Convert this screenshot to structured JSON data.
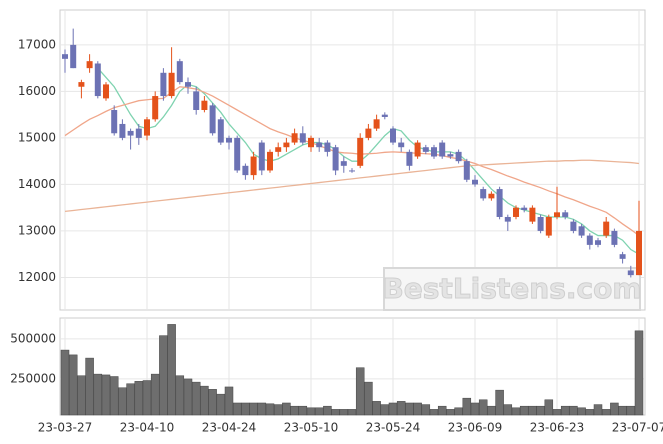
{
  "chart_data": [
    {
      "type": "candlestick",
      "watermark": "BestListens.com",
      "categories": [
        "23-03-27",
        null,
        null,
        null,
        null,
        null,
        null,
        null,
        null,
        null,
        "23-04-10",
        null,
        null,
        null,
        null,
        null,
        null,
        null,
        null,
        null,
        "23-04-24",
        null,
        null,
        null,
        null,
        null,
        null,
        null,
        null,
        null,
        "23-05-10",
        null,
        null,
        null,
        null,
        null,
        null,
        null,
        null,
        null,
        "23-05-24",
        null,
        null,
        null,
        null,
        null,
        null,
        null,
        null,
        null,
        "23-06-09",
        null,
        null,
        null,
        null,
        null,
        null,
        null,
        null,
        null,
        "23-06-23",
        null,
        null,
        null,
        null,
        null,
        null,
        null,
        null,
        null,
        "23-07-07"
      ],
      "open": [
        16800,
        17000,
        16100,
        16500,
        16600,
        15850,
        15600,
        15300,
        15150,
        15200,
        15050,
        15400,
        16400,
        15900,
        16650,
        16200,
        16000,
        15600,
        15700,
        15400,
        15000,
        15000,
        14400,
        14200,
        14900,
        14300,
        14700,
        14800,
        14900,
        15100,
        14800,
        14900,
        14900,
        14800,
        14500,
        14300,
        14400,
        15000,
        15200,
        15500,
        15200,
        14900,
        14700,
        14600,
        14800,
        14800,
        14900,
        14650,
        14700,
        14500,
        14100,
        13900,
        13700,
        13900,
        13300,
        13300,
        13500,
        13200,
        13300,
        12900,
        13300,
        13400,
        13200,
        13100,
        12900,
        12800,
        12900,
        13000,
        12500,
        12150,
        12050
      ],
      "high": [
        16900,
        17350,
        16250,
        16800,
        16650,
        16200,
        15700,
        15400,
        15200,
        15300,
        15450,
        16000,
        16500,
        16950,
        16700,
        16300,
        16100,
        15900,
        15750,
        15450,
        15050,
        15050,
        14450,
        14700,
        14950,
        14750,
        14900,
        15000,
        15200,
        15250,
        15050,
        15000,
        14950,
        14850,
        14600,
        14350,
        15100,
        15300,
        15500,
        15550,
        15250,
        15000,
        14750,
        14950,
        14850,
        14850,
        14950,
        14700,
        14750,
        14550,
        14200,
        13950,
        13850,
        13950,
        13350,
        13550,
        13550,
        13550,
        13350,
        13350,
        13950,
        13450,
        13250,
        13150,
        12950,
        12850,
        13300,
        13050,
        12550,
        12250,
        13650
      ],
      "low": [
        16400,
        16500,
        15850,
        16400,
        15850,
        15800,
        15050,
        14950,
        14750,
        14850,
        14950,
        15350,
        15800,
        15850,
        16150,
        15950,
        15500,
        15550,
        15050,
        14850,
        14750,
        14250,
        14100,
        14100,
        14200,
        14250,
        14600,
        14700,
        14850,
        14850,
        14700,
        14700,
        14600,
        14200,
        14250,
        14250,
        14350,
        14950,
        15150,
        15400,
        14850,
        14700,
        14300,
        14550,
        14650,
        14550,
        14550,
        14550,
        14450,
        14050,
        13950,
        13650,
        13650,
        13250,
        13000,
        13250,
        13400,
        13150,
        12950,
        12850,
        13250,
        13250,
        12950,
        12850,
        12600,
        12650,
        12850,
        12650,
        12300,
        12000,
        12050
      ],
      "close": [
        16700,
        16500,
        16200,
        16650,
        15900,
        16150,
        15100,
        15000,
        15050,
        15000,
        15400,
        15900,
        15900,
        16400,
        16200,
        16100,
        15600,
        15800,
        15100,
        14900,
        14900,
        14300,
        14200,
        14600,
        14300,
        14700,
        14800,
        14900,
        15100,
        14900,
        15000,
        14800,
        14700,
        14300,
        14400,
        14280,
        15000,
        15200,
        15400,
        15450,
        14900,
        14800,
        14400,
        14900,
        14700,
        14600,
        14600,
        14600,
        14500,
        14100,
        14000,
        13700,
        13800,
        13300,
        13200,
        13500,
        13450,
        13500,
        13000,
        13300,
        13400,
        13300,
        13000,
        12900,
        12700,
        12700,
        13200,
        12700,
        12400,
        12050,
        13000
      ],
      "up_color": "#e4521b",
      "down_color": "#6c72b4",
      "lines": [
        {
          "color": "#7fd3b0",
          "values": [
            null,
            null,
            null,
            null,
            16500,
            16300,
            16100,
            15800,
            15500,
            15250,
            15200,
            15250,
            15450,
            15700,
            16000,
            16150,
            16100,
            15950,
            15750,
            15550,
            15300,
            15100,
            14900,
            14650,
            14550,
            14500,
            14550,
            14650,
            14750,
            14850,
            14900,
            14900,
            14850,
            14750,
            14600,
            14500,
            14500,
            14650,
            14850,
            15050,
            15200,
            15150,
            14950,
            14800,
            14750,
            14700,
            14700,
            14700,
            14650,
            14500,
            14300,
            14100,
            13900,
            13750,
            13600,
            13500,
            13450,
            13400,
            13350,
            13300,
            13300,
            13300,
            13250,
            13150,
            13000,
            12900,
            12900,
            12900,
            12800,
            12600,
            12500
          ]
        },
        {
          "color": "#f0a68a",
          "values": [
            15050,
            15170,
            15290,
            15400,
            15480,
            15570,
            15650,
            15700,
            15750,
            15800,
            15820,
            15840,
            15850,
            15980,
            16100,
            16080,
            16050,
            15980,
            15900,
            15800,
            15700,
            15600,
            15500,
            15400,
            15300,
            15200,
            15130,
            15070,
            15000,
            14950,
            14900,
            14830,
            14770,
            14700,
            14680,
            14670,
            14650,
            14660,
            14670,
            14690,
            14700,
            14690,
            14680,
            14670,
            14660,
            14650,
            14620,
            14580,
            14550,
            14500,
            14450,
            14380,
            14320,
            14250,
            14180,
            14120,
            14050,
            13990,
            13930,
            13860,
            13800,
            13730,
            13670,
            13600,
            13530,
            13470,
            13400,
            13280,
            13150,
            13030,
            12900
          ]
        },
        {
          "color": "#eab497",
          "values": [
            13420,
            13440,
            13460,
            13480,
            13500,
            13520,
            13540,
            13560,
            13580,
            13600,
            13620,
            13640,
            13660,
            13680,
            13700,
            13720,
            13740,
            13760,
            13780,
            13800,
            13820,
            13840,
            13860,
            13880,
            13900,
            13920,
            13940,
            13960,
            13980,
            14000,
            14020,
            14040,
            14060,
            14080,
            14100,
            14120,
            14140,
            14160,
            14180,
            14200,
            14220,
            14240,
            14260,
            14280,
            14300,
            14320,
            14340,
            14360,
            14380,
            14400,
            14410,
            14420,
            14430,
            14440,
            14450,
            14460,
            14470,
            14480,
            14490,
            14500,
            14500,
            14510,
            14510,
            14520,
            14520,
            14510,
            14500,
            14490,
            14480,
            14470,
            14450
          ]
        }
      ],
      "ylim": [
        11300,
        17750
      ],
      "yticks": [
        12000,
        13000,
        14000,
        15000,
        16000,
        17000
      ],
      "grid": true
    },
    {
      "type": "bar",
      "color": "#6e6e6e",
      "values": [
        430000,
        400000,
        270000,
        380000,
        280000,
        275000,
        265000,
        195000,
        220000,
        235000,
        240000,
        280000,
        520000,
        590000,
        270000,
        250000,
        230000,
        205000,
        185000,
        155000,
        200000,
        100000,
        100000,
        100000,
        100000,
        95000,
        90000,
        100000,
        80000,
        80000,
        70000,
        70000,
        80000,
        60000,
        60000,
        60000,
        320000,
        230000,
        110000,
        90000,
        100000,
        110000,
        100000,
        100000,
        90000,
        60000,
        80000,
        60000,
        70000,
        130000,
        100000,
        120000,
        80000,
        180000,
        90000,
        70000,
        80000,
        80000,
        80000,
        120000,
        60000,
        80000,
        80000,
        70000,
        60000,
        90000,
        60000,
        100000,
        80000,
        80000,
        550000
      ],
      "ylim": [
        25000,
        630000
      ],
      "yticks": [
        250000,
        500000
      ],
      "grid": true
    }
  ]
}
